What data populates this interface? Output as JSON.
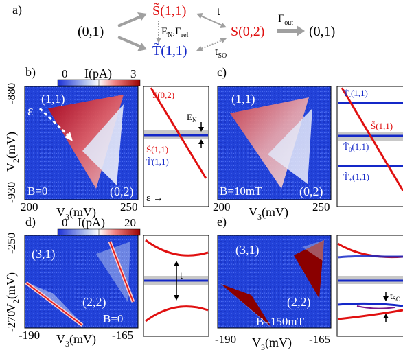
{
  "figure": {
    "panel_a": {
      "label": "a)",
      "left_state": "(0,1)",
      "singlet_11": "S̃(1,1)",
      "triplet_11": "T̃(1,1)",
      "singlet_02": "S(0,2)",
      "right_state": "(0,1)",
      "t_label": "t",
      "rates_label": "E",
      "rates_sub_n": "N",
      "rates_mid": ",Γ",
      "rates_sub_rel": "rel",
      "tso_label": "t",
      "tso_sub": "SO",
      "gamma_out": "Γ",
      "gamma_out_sub": "out",
      "colors": {
        "singlet": "#e01010",
        "triplet": "#1428c8",
        "arrow": "#a0a0a0"
      }
    },
    "colorbar_top": {
      "label": "I(pA)",
      "min": "0",
      "max": "3"
    },
    "colorbar_bottom": {
      "label": "I(pA)",
      "min": "0",
      "max": "20"
    },
    "panel_b": {
      "label": "b)",
      "y_top": "-880",
      "y_bottom": "-930",
      "y_axis": "V",
      "y_sub": "2",
      "y_unit": "(mV)",
      "x_left": "200",
      "x_right": "250",
      "x_axis": "V",
      "x_sub": "3",
      "x_unit": "(mV)",
      "region_11": "(1,1)",
      "region_02": "(0,2)",
      "epsilon": "ε",
      "field": "B=0"
    },
    "panel_b_diagram": {
      "s02": "S(0,2)",
      "en": "E",
      "en_sub": "N",
      "s11": "S̃(1,1)",
      "t11": "T̃(1,1)",
      "eps": "ε →"
    },
    "panel_c": {
      "label": "c)",
      "x_left": "200",
      "x_right": "250",
      "x_axis": "V",
      "x_sub": "3",
      "x_unit": "(mV)",
      "region_11": "(1,1)",
      "region_02": "(0,2)",
      "field": "B=10mT"
    },
    "panel_c_diagram": {
      "tminus": "T̃",
      "tminus_sub": "-",
      "tminus_tail": "(1,1)",
      "s11": "S̃(1,1)",
      "t0": "T̃",
      "t0_sub": "0",
      "t0_tail": "(1,1)",
      "tplus": "T̃",
      "tplus_sub": "+",
      "tplus_tail": "(1,1)"
    },
    "panel_d": {
      "label": "d)",
      "y_top": "-250",
      "y_bottom": "-270",
      "y_axis": "V",
      "y_sub": "2",
      "y_unit": "(mV)",
      "x_left": "-190",
      "x_right": "-165",
      "x_axis": "V",
      "x_sub": "3",
      "x_unit": "(mV)",
      "region_31": "(3,1)",
      "region_22": "(2,2)",
      "field": "B=0"
    },
    "panel_d_diagram": {
      "t": "t"
    },
    "panel_e": {
      "label": "e)",
      "x_left": "-190",
      "x_right": "-165",
      "x_axis": "V",
      "x_sub": "3",
      "x_unit": "(mV)",
      "region_31": "(3,1)",
      "region_22": "(2,2)",
      "field": "B=150mT"
    },
    "panel_e_diagram": {
      "tso": "t",
      "tso_sub": "SO"
    }
  }
}
